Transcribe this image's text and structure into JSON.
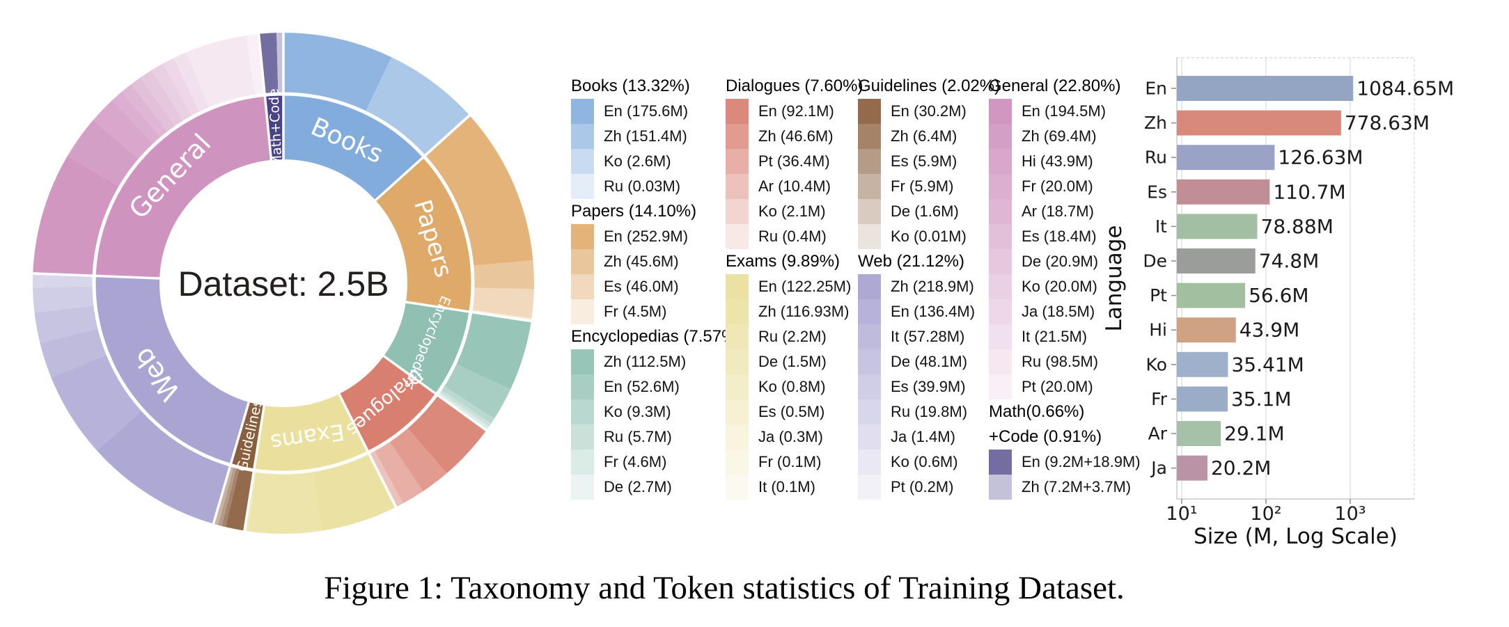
{
  "figure": {
    "caption": "Figure 1: Taxonomy and Token statistics of Training Dataset."
  },
  "chart_data": [
    {
      "type": "pie",
      "subtype": "sunburst-donut",
      "center_label": "Dataset: 2.5B",
      "unit": "M tokens",
      "categories": [
        {
          "name": "Books",
          "pct": 13.32,
          "header": "Books (13.32%)",
          "color": "#82acdc",
          "languages": [
            {
              "label": "En (175.6M)",
              "value": 175.6
            },
            {
              "label": "Zh (151.4M)",
              "value": 151.4
            },
            {
              "label": "Ko (2.6M)",
              "value": 2.6
            },
            {
              "label": "Ru (0.03M)",
              "value": 0.03
            }
          ]
        },
        {
          "name": "Papers",
          "pct": 14.1,
          "header": "Papers (14.10%)",
          "color": "#dfa969",
          "languages": [
            {
              "label": "En (252.9M)",
              "value": 252.9
            },
            {
              "label": "Zh (45.6M)",
              "value": 45.6
            },
            {
              "label": "Es (46.0M)",
              "value": 46.0
            },
            {
              "label": "Fr (4.5M)",
              "value": 4.5
            }
          ]
        },
        {
          "name": "Encyclopedias",
          "pct": 7.57,
          "header": "Encyclopedias (7.57%)",
          "color": "#8fc0b2",
          "languages": [
            {
              "label": "Zh (112.5M)",
              "value": 112.5
            },
            {
              "label": "En (52.6M)",
              "value": 52.6
            },
            {
              "label": "Ko (9.3M)",
              "value": 9.3
            },
            {
              "label": "Ru (5.7M)",
              "value": 5.7
            },
            {
              "label": "Fr (4.6M)",
              "value": 4.6
            },
            {
              "label": "De (2.7M)",
              "value": 2.7
            }
          ]
        },
        {
          "name": "Dialogues",
          "pct": 7.6,
          "header": "Dialogues (7.60%)",
          "color": "#d87f6f",
          "languages": [
            {
              "label": "En (92.1M)",
              "value": 92.1
            },
            {
              "label": "Zh (46.6M)",
              "value": 46.6
            },
            {
              "label": "Pt (36.4M)",
              "value": 36.4
            },
            {
              "label": "Ar (10.4M)",
              "value": 10.4
            },
            {
              "label": "Ko (2.1M)",
              "value": 2.1
            },
            {
              "label": "Ru (0.4M)",
              "value": 0.4
            }
          ]
        },
        {
          "name": "Exams",
          "pct": 9.89,
          "header": "Exams (9.89%)",
          "color": "#eadf9d",
          "languages": [
            {
              "label": "En (122.25M)",
              "value": 122.25
            },
            {
              "label": "Zh (116.93M)",
              "value": 116.93
            },
            {
              "label": "Ru (2.2M)",
              "value": 2.2
            },
            {
              "label": "De (1.5M)",
              "value": 1.5
            },
            {
              "label": "Ko (0.8M)",
              "value": 0.8
            },
            {
              "label": "Es (0.5M)",
              "value": 0.5
            },
            {
              "label": "Ja (0.3M)",
              "value": 0.3
            },
            {
              "label": "Fr (0.1M)",
              "value": 0.1
            },
            {
              "label": "It (0.1M)",
              "value": 0.1
            }
          ]
        },
        {
          "name": "Guidelines",
          "pct": 2.02,
          "header": "Guidelines (2.02%)",
          "color": "#8a5f3e",
          "languages": [
            {
              "label": "En (30.2M)",
              "value": 30.2
            },
            {
              "label": "Zh (6.4M)",
              "value": 6.4
            },
            {
              "label": "Es (5.9M)",
              "value": 5.9
            },
            {
              "label": "Fr (5.9M)",
              "value": 5.9
            },
            {
              "label": "De (1.6M)",
              "value": 1.6
            },
            {
              "label": "Ko (0.01M)",
              "value": 0.01
            }
          ]
        },
        {
          "name": "Web",
          "pct": 21.12,
          "header": "Web (21.12%)",
          "color": "#a9a4d2",
          "languages": [
            {
              "label": "Zh (218.9M)",
              "value": 218.9
            },
            {
              "label": "En (136.4M)",
              "value": 136.4
            },
            {
              "label": "It (57.28M)",
              "value": 57.28
            },
            {
              "label": "De (48.1M)",
              "value": 48.1
            },
            {
              "label": "Es (39.9M)",
              "value": 39.9
            },
            {
              "label": "Ru (19.8M)",
              "value": 19.8
            },
            {
              "label": "Ja (1.4M)",
              "value": 1.4
            },
            {
              "label": "Ko (0.6M)",
              "value": 0.6
            },
            {
              "label": "Pt (0.2M)",
              "value": 0.2
            }
          ]
        },
        {
          "name": "General",
          "pct": 22.8,
          "header": "General (22.80%)",
          "color": "#cf93bf",
          "languages": [
            {
              "label": "En (194.5M)",
              "value": 194.5
            },
            {
              "label": "Zh (69.4M)",
              "value": 69.4
            },
            {
              "label": "Hi (43.9M)",
              "value": 43.9
            },
            {
              "label": "Fr (20.0M)",
              "value": 20.0
            },
            {
              "label": "Ar (18.7M)",
              "value": 18.7
            },
            {
              "label": "Es (18.4M)",
              "value": 18.4
            },
            {
              "label": "De (20.9M)",
              "value": 20.9
            },
            {
              "label": "Ko (20.0M)",
              "value": 20.0
            },
            {
              "label": "Ja (18.5M)",
              "value": 18.5
            },
            {
              "label": "It (21.5M)",
              "value": 21.5
            },
            {
              "label": "Ru (98.5M)",
              "value": 98.5
            },
            {
              "label": "Pt (20.0M)",
              "value": 20.0
            }
          ]
        },
        {
          "name": "Math+Code",
          "pct": 1.57,
          "header_lines": [
            "Math(0.66%)",
            "+Code (0.91%)"
          ],
          "color": "#4a4386",
          "languages": [
            {
              "label": "En (9.2M+18.9M)",
              "value": 28.1
            },
            {
              "label": "Zh (7.2M+3.7M)",
              "value": 10.9
            }
          ]
        }
      ]
    },
    {
      "type": "bar",
      "orientation": "horizontal",
      "xscale": "log",
      "categories": [
        "En",
        "Zh",
        "Ru",
        "Es",
        "It",
        "De",
        "Pt",
        "Hi",
        "Ko",
        "Fr",
        "Ar",
        "Ja"
      ],
      "values": [
        1084.65,
        778.63,
        126.63,
        110.7,
        78.88,
        74.8,
        56.6,
        43.9,
        35.41,
        35.1,
        29.1,
        20.2
      ],
      "bar_labels": [
        "1084.65M",
        "778.63M",
        "126.63M",
        "110.7M",
        "78.88M",
        "74.8M",
        "56.6M",
        "43.9M",
        "35.41M",
        "35.1M",
        "29.1M",
        "20.2M"
      ],
      "colors": [
        "#93a5c2",
        "#d8897b",
        "#9aa3c6",
        "#c08e94",
        "#a2bfa4",
        "#9b9d9b",
        "#a2bfa0",
        "#cfa284",
        "#9fb0ca",
        "#9bacc6",
        "#a5c1a7",
        "#bb93a6"
      ],
      "xlabel": "Size (M, Log Scale)",
      "ylabel": "Language",
      "xtick_labels": [
        "10¹",
        "10²",
        "10³"
      ],
      "xtick_values": [
        10,
        100,
        1000
      ],
      "xlim": [
        8.6,
        5800
      ],
      "grid": "vertical-major"
    }
  ],
  "legend": {
    "columns": [
      [
        "Books",
        "Papers",
        "Encyclopedias"
      ],
      [
        "Dialogues",
        "Exams"
      ],
      [
        "Guidelines",
        "Web"
      ],
      [
        "General",
        "Math+Code"
      ]
    ]
  }
}
